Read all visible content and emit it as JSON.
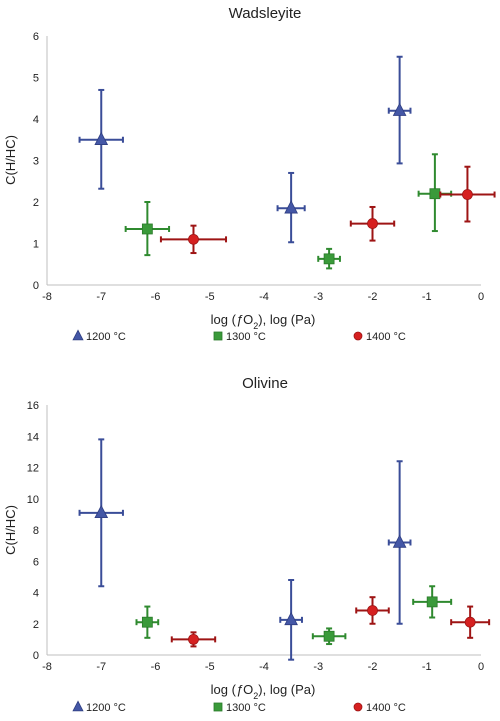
{
  "chart_data": [
    {
      "type": "scatter",
      "title": "Wadsleyite",
      "xlabel_prefix": "log (",
      "xlabel_f": "ƒ",
      "xlabel_o": "O",
      "xlabel_sub": "2",
      "xlabel_suffix": "), log (Pa)",
      "ylabel": "C(H/HC)",
      "xlim": [
        -8,
        0
      ],
      "ylim": [
        0,
        6
      ],
      "xticks": [
        "-8",
        "-7",
        "-6",
        "-5",
        "-4",
        "-3",
        "-2",
        "-1",
        "0"
      ],
      "yticks": [
        "0",
        "1",
        "2",
        "3",
        "4",
        "5",
        "6"
      ],
      "grid": false,
      "legend_position": "bottom",
      "series": [
        {
          "name": "1200 °C",
          "marker": "triangle",
          "color": "#4457a6",
          "points": [
            {
              "x": -7.0,
              "y": 3.5,
              "xerr": 0.4,
              "ylow": 2.32,
              "yhigh": 4.7
            },
            {
              "x": -3.5,
              "y": 1.85,
              "xerr": 0.25,
              "ylow": 1.03,
              "yhigh": 2.7
            },
            {
              "x": -1.5,
              "y": 4.2,
              "xerr": 0.2,
              "ylow": 2.93,
              "yhigh": 5.5
            }
          ]
        },
        {
          "name": "1300 °C",
          "marker": "square",
          "color": "#3a9a3a",
          "points": [
            {
              "x": -6.15,
              "y": 1.35,
              "xerr": 0.4,
              "ylow": 0.72,
              "yhigh": 2.0
            },
            {
              "x": -2.8,
              "y": 0.63,
              "xerr": 0.2,
              "ylow": 0.4,
              "yhigh": 0.87
            },
            {
              "x": -0.85,
              "y": 2.2,
              "xerr": 0.3,
              "ylow": 1.3,
              "yhigh": 3.15
            }
          ]
        },
        {
          "name": "1400 °C",
          "marker": "circle",
          "color": "#d62020",
          "points": [
            {
              "x": -5.3,
              "y": 1.1,
              "xerr": 0.6,
              "ylow": 0.77,
              "yhigh": 1.43
            },
            {
              "x": -2.0,
              "y": 1.48,
              "xerr": 0.4,
              "ylow": 1.07,
              "yhigh": 1.88
            },
            {
              "x": -0.25,
              "y": 2.18,
              "xerr": 0.5,
              "ylow": 1.53,
              "yhigh": 2.85
            }
          ]
        }
      ]
    },
    {
      "type": "scatter",
      "title": "Olivine",
      "xlabel_prefix": "log (",
      "xlabel_f": "ƒ",
      "xlabel_o": "O",
      "xlabel_sub": "2",
      "xlabel_suffix": "), log (Pa)",
      "ylabel": "C(H/HC)",
      "xlim": [
        -8,
        0
      ],
      "ylim": [
        0,
        16
      ],
      "xticks": [
        "-8",
        "-7",
        "-6",
        "-5",
        "-4",
        "-3",
        "-2",
        "-1",
        "0"
      ],
      "yticks": [
        "0",
        "2",
        "4",
        "6",
        "8",
        "10",
        "12",
        "14",
        "16"
      ],
      "grid": false,
      "legend_position": "bottom",
      "series": [
        {
          "name": "1200 °C",
          "marker": "triangle",
          "color": "#4457a6",
          "points": [
            {
              "x": -7.0,
              "y": 9.1,
              "xerr": 0.4,
              "ylow": 4.4,
              "yhigh": 13.8
            },
            {
              "x": -3.5,
              "y": 2.25,
              "xerr": 0.2,
              "ylow": -0.3,
              "yhigh": 4.8
            },
            {
              "x": -1.5,
              "y": 7.2,
              "xerr": 0.2,
              "ylow": 2.0,
              "yhigh": 12.4
            }
          ]
        },
        {
          "name": "1300 °C",
          "marker": "square",
          "color": "#3a9a3a",
          "points": [
            {
              "x": -6.15,
              "y": 2.1,
              "xerr": 0.2,
              "ylow": 1.1,
              "yhigh": 3.1
            },
            {
              "x": -2.8,
              "y": 1.2,
              "xerr": 0.3,
              "ylow": 0.7,
              "yhigh": 1.7
            },
            {
              "x": -0.9,
              "y": 3.4,
              "xerr": 0.35,
              "ylow": 2.4,
              "yhigh": 4.4
            }
          ]
        },
        {
          "name": "1400 °C",
          "marker": "circle",
          "color": "#d62020",
          "points": [
            {
              "x": -5.3,
              "y": 1.0,
              "xerr": 0.4,
              "ylow": 0.55,
              "yhigh": 1.45
            },
            {
              "x": -2.0,
              "y": 2.85,
              "xerr": 0.3,
              "ylow": 2.0,
              "yhigh": 3.7
            },
            {
              "x": -0.2,
              "y": 2.1,
              "xerr": 0.35,
              "ylow": 1.1,
              "yhigh": 3.1
            }
          ]
        }
      ]
    }
  ]
}
